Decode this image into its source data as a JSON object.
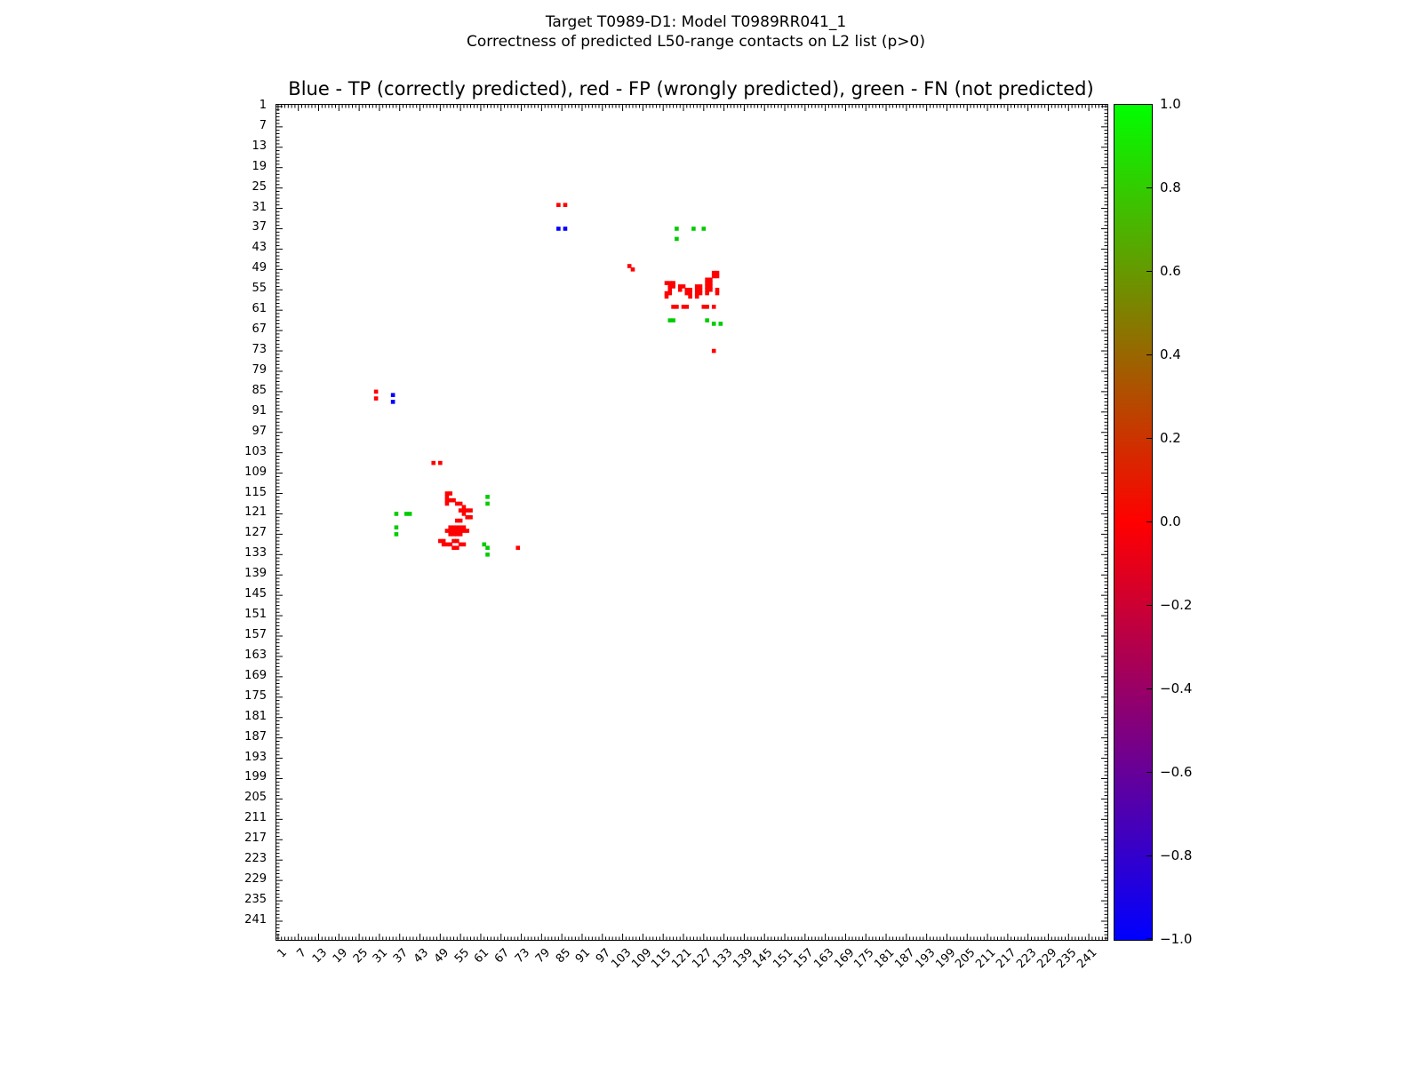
{
  "header": {
    "suptitle_line1": "Target T0989-D1: Model T0989RR041_1",
    "suptitle_line2": "Correctness of predicted L50-range contacts on L2 list (p>0)",
    "axes_title": "Blue - TP (correctly predicted), red - FP (wrongly predicted), green - FN (not predicted)"
  },
  "chart_data": {
    "type": "scatter",
    "title": "Blue - TP (correctly predicted), red - FP (wrongly predicted), green - FN (not predicted)",
    "suptitle": [
      "Target T0989-D1: Model T0989RR041_1",
      "Correctness of predicted L50-range contacts on L2 list (p>0)"
    ],
    "xlabel": "",
    "ylabel": "",
    "n_residues": 246,
    "xlim": [
      0.5,
      246.5
    ],
    "ylim": [
      0.5,
      246.5
    ],
    "y_axis_inverted": true,
    "grid": false,
    "marker": "square",
    "x_ticks": [
      1,
      7,
      13,
      19,
      25,
      31,
      37,
      43,
      49,
      55,
      61,
      67,
      73,
      79,
      85,
      91,
      97,
      103,
      109,
      115,
      121,
      127,
      133,
      139,
      145,
      151,
      157,
      163,
      169,
      175,
      181,
      187,
      193,
      199,
      205,
      211,
      217,
      223,
      229,
      235,
      241
    ],
    "y_ticks": [
      1,
      7,
      13,
      19,
      25,
      31,
      37,
      43,
      49,
      55,
      61,
      67,
      73,
      79,
      85,
      91,
      97,
      103,
      109,
      115,
      121,
      127,
      133,
      139,
      145,
      151,
      157,
      163,
      169,
      175,
      181,
      187,
      193,
      199,
      205,
      211,
      217,
      223,
      229,
      235,
      241
    ],
    "series": [
      {
        "name": "TP (correctly predicted)",
        "color": "#0000ff",
        "points": [
          [
            84,
            37
          ],
          [
            86,
            37
          ],
          [
            35,
            86
          ],
          [
            35,
            88
          ]
        ]
      },
      {
        "name": "FP (wrongly predicted)",
        "color": "#ff0000",
        "points": [
          [
            84,
            30
          ],
          [
            86,
            30
          ],
          [
            105,
            48
          ],
          [
            106,
            49
          ],
          [
            116,
            53
          ],
          [
            117,
            53
          ],
          [
            118,
            53
          ],
          [
            117,
            54
          ],
          [
            118,
            54
          ],
          [
            117,
            55
          ],
          [
            116,
            56
          ],
          [
            117,
            56
          ],
          [
            116,
            57
          ],
          [
            120,
            54
          ],
          [
            121,
            54
          ],
          [
            120,
            55
          ],
          [
            122,
            55
          ],
          [
            123,
            55
          ],
          [
            122,
            56
          ],
          [
            123,
            56
          ],
          [
            123,
            57
          ],
          [
            125,
            54
          ],
          [
            126,
            54
          ],
          [
            125,
            55
          ],
          [
            126,
            55
          ],
          [
            125,
            56
          ],
          [
            126,
            56
          ],
          [
            125,
            57
          ],
          [
            128,
            52
          ],
          [
            129,
            52
          ],
          [
            128,
            53
          ],
          [
            129,
            53
          ],
          [
            128,
            54
          ],
          [
            129,
            54
          ],
          [
            128,
            55
          ],
          [
            129,
            55
          ],
          [
            128,
            56
          ],
          [
            130,
            50
          ],
          [
            131,
            50
          ],
          [
            130,
            51
          ],
          [
            131,
            51
          ],
          [
            131,
            55
          ],
          [
            131,
            56
          ],
          [
            118,
            60
          ],
          [
            119,
            60
          ],
          [
            121,
            60
          ],
          [
            122,
            60
          ],
          [
            127,
            60
          ],
          [
            128,
            60
          ],
          [
            130,
            60
          ],
          [
            130,
            73
          ],
          [
            30,
            85
          ],
          [
            30,
            87
          ],
          [
            47,
            106
          ],
          [
            49,
            106
          ],
          [
            51,
            115
          ],
          [
            52,
            115
          ],
          [
            51,
            116
          ],
          [
            51,
            117
          ],
          [
            51,
            118
          ],
          [
            52,
            117
          ],
          [
            53,
            117
          ],
          [
            54,
            118
          ],
          [
            55,
            118
          ],
          [
            56,
            119
          ],
          [
            55,
            120
          ],
          [
            56,
            120
          ],
          [
            57,
            120
          ],
          [
            58,
            120
          ],
          [
            56,
            121
          ],
          [
            57,
            122
          ],
          [
            58,
            122
          ],
          [
            54,
            123
          ],
          [
            55,
            123
          ],
          [
            52,
            125
          ],
          [
            53,
            125
          ],
          [
            54,
            125
          ],
          [
            55,
            125
          ],
          [
            56,
            125
          ],
          [
            51,
            126
          ],
          [
            52,
            126
          ],
          [
            53,
            126
          ],
          [
            54,
            126
          ],
          [
            55,
            126
          ],
          [
            56,
            126
          ],
          [
            57,
            126
          ],
          [
            52,
            127
          ],
          [
            53,
            127
          ],
          [
            54,
            127
          ],
          [
            55,
            127
          ],
          [
            49,
            129
          ],
          [
            50,
            129
          ],
          [
            53,
            129
          ],
          [
            54,
            129
          ],
          [
            50,
            130
          ],
          [
            51,
            130
          ],
          [
            52,
            130
          ],
          [
            55,
            130
          ],
          [
            56,
            130
          ],
          [
            53,
            131
          ],
          [
            54,
            131
          ],
          [
            72,
            131
          ]
        ]
      },
      {
        "name": "FN (not predicted)",
        "color": "#00cc00",
        "points": [
          [
            119,
            37
          ],
          [
            119,
            40
          ],
          [
            124,
            37
          ],
          [
            127,
            37
          ],
          [
            117,
            64
          ],
          [
            118,
            64
          ],
          [
            128,
            64
          ],
          [
            130,
            65
          ],
          [
            132,
            65
          ],
          [
            36,
            121
          ],
          [
            39,
            121
          ],
          [
            40,
            121
          ],
          [
            36,
            125
          ],
          [
            36,
            127
          ],
          [
            63,
            116
          ],
          [
            63,
            118
          ],
          [
            62,
            130
          ],
          [
            63,
            131
          ],
          [
            63,
            133
          ]
        ]
      }
    ],
    "colorbar": {
      "min": -1.0,
      "max": 1.0,
      "color_bottom": "#0000ff",
      "color_middle": "#ff0000",
      "color_top": "#00ff00",
      "tick_labels": [
        "1.0",
        "0.8",
        "0.6",
        "0.4",
        "0.2",
        "0.0",
        "−0.2",
        "−0.4",
        "−0.6",
        "−0.8",
        "−1.0"
      ]
    }
  }
}
